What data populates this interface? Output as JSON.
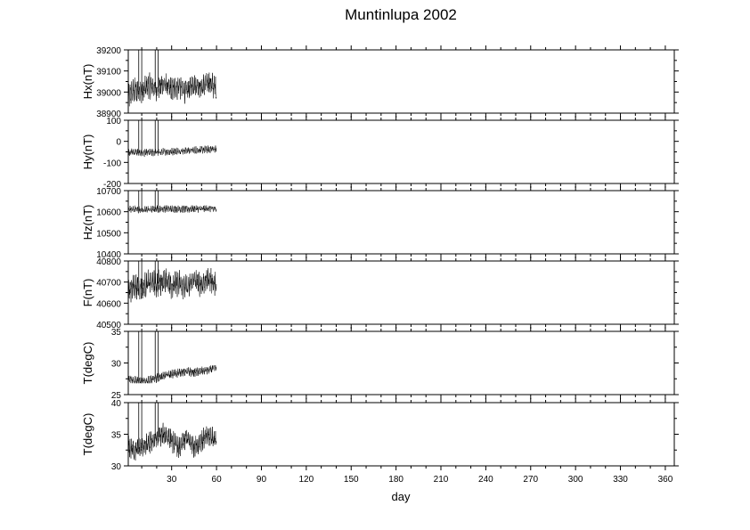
{
  "title": "Muntinlupa 2002",
  "xlabel": "day",
  "xticks": [
    30,
    60,
    90,
    120,
    150,
    180,
    210,
    240,
    270,
    300,
    330,
    360
  ],
  "chart_data": [
    {
      "type": "line",
      "ylabel": "Hx(nT)",
      "ylim": [
        38900,
        39200
      ],
      "yticks": [
        38900,
        39000,
        39100,
        39200
      ],
      "x": [
        1,
        5,
        10,
        15,
        20,
        25,
        30,
        35,
        40,
        45,
        50,
        55,
        60
      ],
      "series": [
        {
          "values": [
            38980,
            39010,
            39000,
            39030,
            39015,
            39040,
            39010,
            39030,
            39000,
            39040,
            39020,
            39050,
            39010
          ]
        }
      ],
      "range": [
        38920,
        39150
      ],
      "spikes": [
        8,
        10,
        19,
        21
      ]
    },
    {
      "type": "line",
      "ylabel": "Hy(nT)",
      "ylim": [
        -200,
        100
      ],
      "yticks": [
        -200,
        -100,
        0,
        100
      ],
      "x": [
        1,
        5,
        10,
        15,
        20,
        25,
        30,
        35,
        40,
        45,
        50,
        55,
        60
      ],
      "series": [
        {
          "values": [
            -50,
            -52,
            -55,
            -54,
            -52,
            -50,
            -48,
            -46,
            -44,
            -42,
            -40,
            -38,
            -35
          ]
        }
      ],
      "range": [
        -90,
        -20
      ],
      "spikes": [
        8,
        10,
        19,
        21
      ]
    },
    {
      "type": "line",
      "ylabel": "Hz(nT)",
      "ylim": [
        10400,
        10700
      ],
      "yticks": [
        10400,
        10500,
        10600,
        10700
      ],
      "x": [
        1,
        5,
        10,
        15,
        20,
        25,
        30,
        35,
        40,
        45,
        50,
        55,
        60
      ],
      "series": [
        {
          "values": [
            10610,
            10612,
            10608,
            10610,
            10612,
            10614,
            10612,
            10613,
            10612,
            10614,
            10613,
            10615,
            10614
          ]
        }
      ],
      "range": [
        10560,
        10630
      ],
      "spikes": [
        8,
        10,
        19,
        21
      ]
    },
    {
      "type": "line",
      "ylabel": "F(nT)",
      "ylim": [
        40500,
        40800
      ],
      "yticks": [
        40500,
        40600,
        40700,
        40800
      ],
      "x": [
        1,
        5,
        10,
        15,
        20,
        25,
        30,
        35,
        40,
        45,
        50,
        55,
        60
      ],
      "series": [
        {
          "values": [
            40660,
            40680,
            40670,
            40700,
            40690,
            40710,
            40680,
            40700,
            40670,
            40710,
            40690,
            40720,
            40680
          ]
        }
      ],
      "range": [
        40540,
        40780
      ],
      "spikes": [
        8,
        10,
        19,
        21
      ]
    },
    {
      "type": "line",
      "ylabel": "T(degC)",
      "ylim": [
        25,
        35
      ],
      "yticks": [
        25,
        30,
        35
      ],
      "x": [
        1,
        5,
        10,
        15,
        20,
        25,
        30,
        35,
        40,
        45,
        50,
        55,
        60
      ],
      "series": [
        {
          "values": [
            27.5,
            27.3,
            27.0,
            27.2,
            27.6,
            28.0,
            28.2,
            28.5,
            28.6,
            28.5,
            28.7,
            28.9,
            29.4
          ]
        }
      ],
      "range": [
        26.8,
        29.6
      ],
      "spikes": [
        8,
        10,
        19,
        21
      ]
    },
    {
      "type": "line",
      "ylabel": "T(degC)",
      "ylim": [
        30,
        40
      ],
      "yticks": [
        30,
        35,
        40
      ],
      "x": [
        1,
        5,
        10,
        15,
        20,
        25,
        30,
        35,
        40,
        45,
        50,
        55,
        60
      ],
      "series": [
        {
          "values": [
            33.0,
            32.5,
            32.8,
            33.5,
            34.5,
            35.0,
            34.0,
            32.8,
            34.5,
            33.0,
            34.0,
            34.8,
            34.2
          ]
        }
      ],
      "range": [
        30.2,
        37.0
      ],
      "spikes": [
        8,
        10,
        19,
        21
      ]
    }
  ]
}
